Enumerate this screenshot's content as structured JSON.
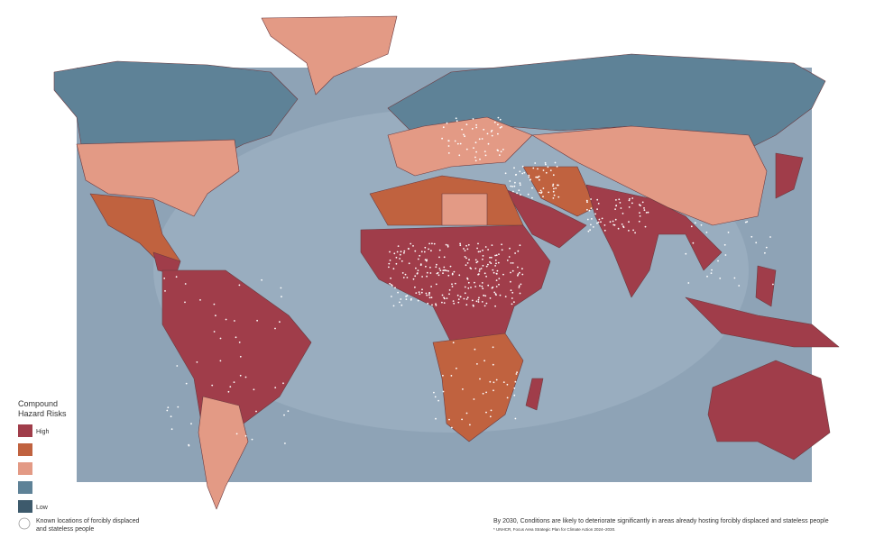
{
  "legend": {
    "title_lines": [
      "Compound",
      "Hazard Risks"
    ],
    "high": "High",
    "low": "Low",
    "displaced_lines": [
      "Known locations of forcibly displaced",
      "and stateless people"
    ]
  },
  "caption": "By 2030, Conditions are likely to deteriorate significantly in areas already hosting forcibly displaced and stateless people",
  "footnote": "* UNHCR, Focus Area Strategic Plan for Climate Action 2024–2030."
}
